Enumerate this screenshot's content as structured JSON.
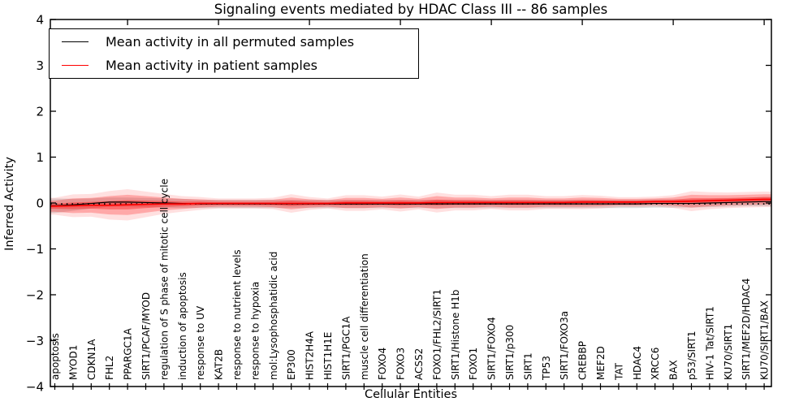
{
  "chart_data": {
    "type": "line",
    "title": "Signaling events mediated by HDAC Class III -- 86 samples",
    "xlabel": "Cellular Entities",
    "ylabel": "Inferred Activity",
    "ylim": [
      -4,
      4
    ],
    "yticks": [
      -4,
      -3,
      -2,
      -1,
      0,
      1,
      2,
      3,
      4
    ],
    "grid": false,
    "legend_position": "upper left",
    "categories": [
      "apoptosis",
      "MYOD1",
      "CDKN1A",
      "FHL2",
      "PPARGC1A",
      "SIRT1/PCAF/MYOD",
      "regulation of S phase of mitotic cell cycle",
      "induction of apoptosis",
      "response to UV",
      "KAT2B",
      "response to nutrient levels",
      "response to hypoxia",
      "mol:Lysophosphatidic acid",
      "EP300",
      "HIST2H4A",
      "HIST1H1E",
      "SIRT1/PGC1A",
      "muscle cell differentiation",
      "FOXO4",
      "FOXO3",
      "ACSS2",
      "FOXO1/FHL2/SIRT1",
      "SIRT1/Histone H1b",
      "FOXO1",
      "SIRT1/FOXO4",
      "SIRT1/p300",
      "SIRT1",
      "TP53",
      "SIRT1/FOXO3a",
      "CREBBP",
      "MEF2D",
      "TAT",
      "HDAC4",
      "XRCC6",
      "BAX",
      "p53/SIRT1",
      "HIV-1 Tat/SIRT1",
      "KU70/SIRT1",
      "SIRT1/MEF2D/HDAC4",
      "KU70/SIRT1/BAX"
    ],
    "series": [
      {
        "name": "Mean activity in all permuted samples",
        "color": "#000000",
        "band_color": "rgba(0,0,0,0.13)",
        "values": [
          -0.06,
          -0.04,
          -0.01,
          0.02,
          0.02,
          0.01,
          0.0,
          -0.01,
          -0.02,
          -0.02,
          -0.02,
          -0.02,
          -0.02,
          -0.02,
          -0.02,
          -0.02,
          -0.02,
          -0.02,
          -0.02,
          -0.02,
          -0.02,
          -0.02,
          -0.02,
          -0.02,
          -0.02,
          -0.02,
          -0.02,
          -0.02,
          -0.02,
          -0.02,
          -0.02,
          -0.02,
          -0.02,
          -0.01,
          -0.01,
          -0.01,
          0.0,
          0.01,
          0.02,
          0.03
        ],
        "band_halfwidths": [
          0.16,
          0.13,
          0.11,
          0.1,
          0.1,
          0.1,
          0.1,
          0.1,
          0.09,
          0.09,
          0.09,
          0.09,
          0.09,
          0.09,
          0.09,
          0.09,
          0.09,
          0.09,
          0.09,
          0.09,
          0.09,
          0.09,
          0.09,
          0.09,
          0.09,
          0.09,
          0.09,
          0.09,
          0.09,
          0.09,
          0.09,
          0.09,
          0.09,
          0.09,
          0.09,
          0.09,
          0.09,
          0.09,
          0.09,
          0.1
        ]
      },
      {
        "name": "Mean activity in patient samples",
        "color": "#ff0000",
        "band_color": "rgba(255,0,0,0.25)",
        "values": [
          -0.07,
          -0.06,
          -0.05,
          -0.05,
          -0.04,
          -0.03,
          -0.02,
          -0.02,
          -0.01,
          -0.01,
          -0.01,
          -0.01,
          -0.01,
          -0.01,
          -0.01,
          -0.01,
          0.0,
          0.0,
          0.0,
          0.0,
          0.0,
          0.01,
          0.01,
          0.01,
          0.01,
          0.01,
          0.01,
          0.01,
          0.01,
          0.02,
          0.02,
          0.02,
          0.02,
          0.03,
          0.03,
          0.04,
          0.05,
          0.06,
          0.07,
          0.08
        ],
        "band_halfwidths": [
          0.12,
          0.16,
          0.16,
          0.2,
          0.22,
          0.18,
          0.14,
          0.11,
          0.09,
          0.07,
          0.07,
          0.07,
          0.08,
          0.13,
          0.09,
          0.07,
          0.11,
          0.11,
          0.09,
          0.12,
          0.09,
          0.14,
          0.11,
          0.11,
          0.09,
          0.11,
          0.11,
          0.09,
          0.09,
          0.1,
          0.09,
          0.07,
          0.07,
          0.07,
          0.09,
          0.14,
          0.12,
          0.11,
          0.11,
          0.11
        ]
      }
    ],
    "reference_line": {
      "y": -0.02,
      "style": "dotted",
      "color": "#000000"
    },
    "top_tick_indices": [
      4,
      9,
      14,
      19,
      24,
      29,
      34,
      39
    ]
  }
}
